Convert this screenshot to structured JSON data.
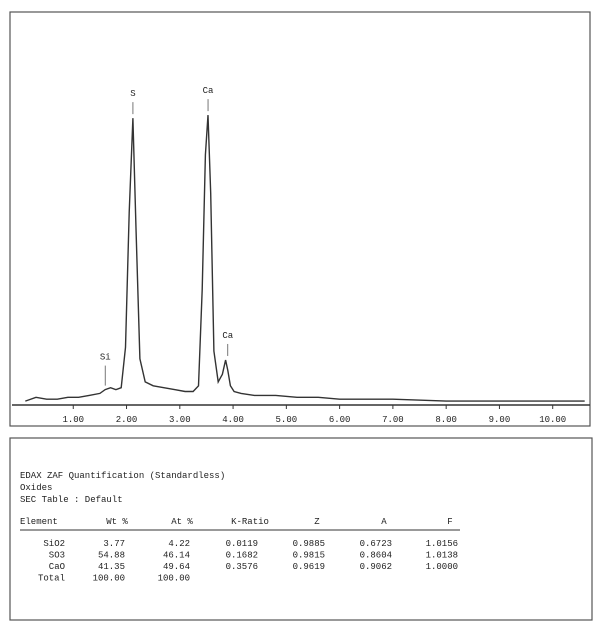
{
  "chart_data": {
    "type": "line",
    "x": [
      0.1,
      0.3,
      0.5,
      0.7,
      0.9,
      1.1,
      1.3,
      1.5,
      1.6,
      1.7,
      1.8,
      1.9,
      1.98,
      2.05,
      2.12,
      2.18,
      2.25,
      2.35,
      2.5,
      2.7,
      2.9,
      3.1,
      3.25,
      3.35,
      3.42,
      3.48,
      3.53,
      3.58,
      3.64,
      3.72,
      3.8,
      3.86,
      3.9,
      3.95,
      4.02,
      4.15,
      4.4,
      4.8,
      5.2,
      5.6,
      6.0,
      7.0,
      8.0,
      9.0,
      10.0,
      10.6
    ],
    "values": [
      1,
      2,
      1.5,
      1.5,
      2,
      2,
      2.5,
      3,
      4,
      4.5,
      4,
      4.5,
      15,
      50,
      74.5,
      45,
      12,
      6,
      5,
      4.5,
      4,
      3.5,
      3.5,
      5,
      30,
      65,
      75.3,
      55,
      14,
      6,
      8,
      11.7,
      9,
      5,
      3.5,
      3,
      2.5,
      2.5,
      2,
      2,
      1.5,
      1.5,
      1,
      1,
      1,
      1
    ],
    "color": "#333333",
    "xlim": [
      -0.15,
      10.7
    ],
    "ylim": [
      0,
      100
    ],
    "xticks": [
      {
        "value": 1,
        "label": "1.00"
      },
      {
        "value": 2,
        "label": "2.00"
      },
      {
        "value": 3,
        "label": "3.00"
      },
      {
        "value": 4,
        "label": "4.00"
      },
      {
        "value": 5,
        "label": "5.00"
      },
      {
        "value": 6,
        "label": "6.00"
      },
      {
        "value": 7,
        "label": "7.00"
      },
      {
        "value": 8,
        "label": "8.00"
      },
      {
        "value": 9,
        "label": "9.00"
      },
      {
        "value": 10,
        "label": "10.00"
      }
    ],
    "annotations": [
      {
        "text": "Si",
        "x": 1.6,
        "y": 4
      },
      {
        "text": "S",
        "x": 2.12,
        "y": 74.5
      },
      {
        "text": "Ca",
        "x": 3.53,
        "y": 75.3
      },
      {
        "text": "Ca",
        "x": 3.9,
        "y": 11.7
      }
    ]
  },
  "report": {
    "lines": [
      "EDAX ZAF Quantification (Standardless)",
      "Oxides",
      "SEC Table : Default"
    ],
    "table": {
      "header": [
        "Element",
        "Wt %",
        "At %",
        "K-Ratio",
        "Z",
        "A",
        "F"
      ],
      "rows": [
        [
          "SiO2",
          "3.77",
          "4.22",
          "0.0119",
          "0.9885",
          "0.6723",
          "1.0156"
        ],
        [
          "SO3",
          "54.88",
          "46.14",
          "0.1682",
          "0.9815",
          "0.8604",
          "1.0138"
        ],
        [
          "CaO",
          "41.35",
          "49.64",
          "0.3576",
          "0.9619",
          "0.9062",
          "1.0000"
        ],
        [
          "Total",
          "100.00",
          "100.00"
        ]
      ]
    }
  }
}
